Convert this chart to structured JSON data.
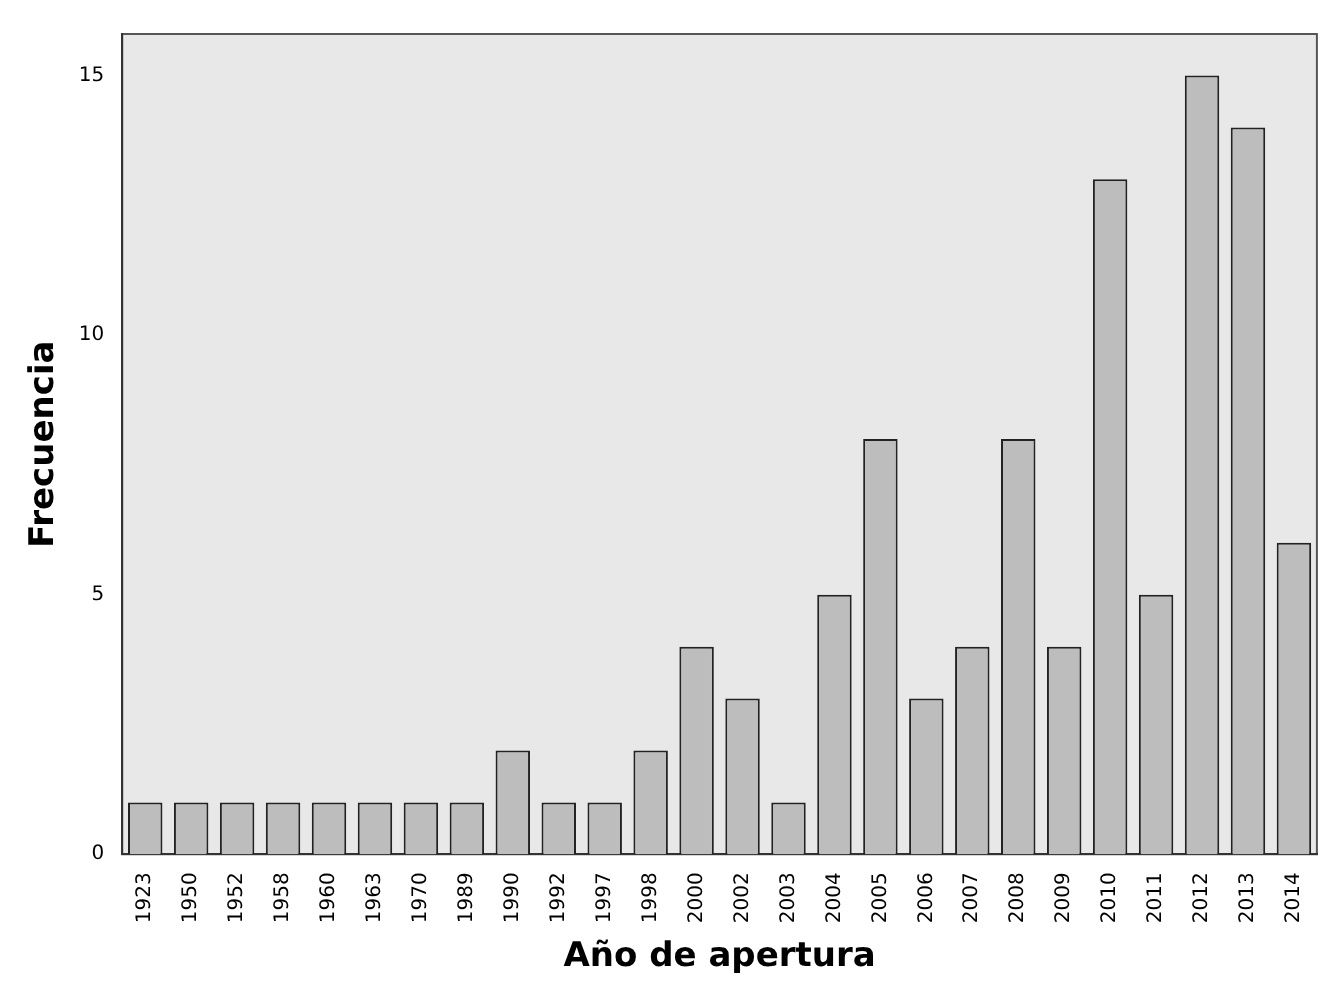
{
  "chart_data": {
    "type": "bar",
    "xlabel": "Año de apertura",
    "ylabel": "Frecuencia",
    "categories": [
      "1923",
      "1950",
      "1952",
      "1958",
      "1960",
      "1963",
      "1970",
      "1989",
      "1990",
      "1992",
      "1997",
      "1998",
      "2000",
      "2002",
      "2003",
      "2004",
      "2005",
      "2006",
      "2007",
      "2008",
      "2009",
      "2010",
      "2011",
      "2012",
      "2013",
      "2014"
    ],
    "values": [
      1,
      1,
      1,
      1,
      1,
      1,
      1,
      1,
      2,
      1,
      1,
      2,
      4,
      3,
      1,
      5,
      8,
      3,
      4,
      8,
      4,
      13,
      5,
      15,
      14,
      6
    ],
    "color": "#bdbdbd",
    "ylim": [
      0,
      15.8
    ],
    "yticks": [
      0,
      5,
      10,
      15
    ],
    "grid": false,
    "legend": false
  }
}
